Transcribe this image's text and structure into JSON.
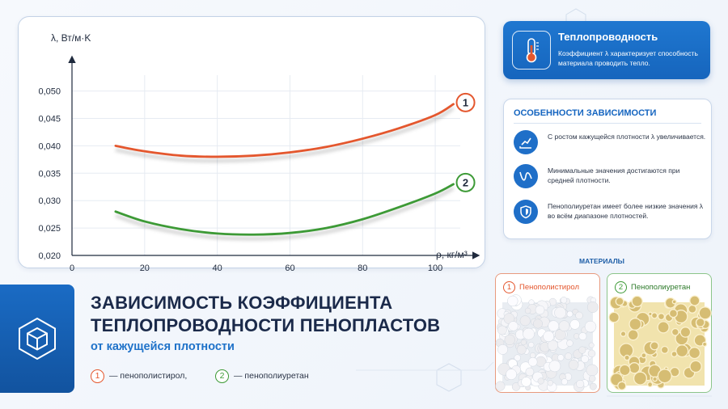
{
  "chart": {
    "y_axis_label": "λ, Вт/м·K",
    "x_axis_label": "ρ, кг/м³"
  },
  "chart_data": {
    "type": "line",
    "x_ticks": [
      0,
      20,
      40,
      60,
      80,
      100
    ],
    "y_ticks": [
      "0,020",
      "0,025",
      "0,030",
      "0,035",
      "0,040",
      "0,045",
      "0,050"
    ],
    "xlim": [
      0,
      110
    ],
    "ylim": [
      0.02,
      0.052
    ],
    "grid": true,
    "series": [
      {
        "marker": "1",
        "color": "#e4572e",
        "x": [
          12,
          20,
          30,
          40,
          50,
          60,
          70,
          80,
          90,
          100,
          105
        ],
        "y": [
          0.04,
          0.039,
          0.0382,
          0.038,
          0.0382,
          0.0388,
          0.0398,
          0.0413,
          0.0432,
          0.0456,
          0.0476
        ]
      },
      {
        "marker": "2",
        "color": "#3d9a36",
        "x": [
          12,
          20,
          30,
          40,
          50,
          60,
          70,
          80,
          90,
          100,
          105
        ],
        "y": [
          0.028,
          0.0262,
          0.0248,
          0.024,
          0.0238,
          0.0241,
          0.025,
          0.0266,
          0.0288,
          0.0313,
          0.033
        ]
      }
    ]
  },
  "info_card": {
    "title": "Теплопроводность",
    "description": "Коэффициент λ характеризует способность материала проводить тепло.",
    "icon": "thermometer-icon"
  },
  "features": {
    "title": "ОСОБЕННОСТИ ЗАВИСИМОСТИ",
    "items": [
      {
        "icon": "trend-up-icon",
        "text": "С ростом кажущейся плотности λ увеличивается."
      },
      {
        "icon": "curve-min-icon",
        "text": "Минимальные значения достигаются при средней плотности."
      },
      {
        "icon": "shield-icon",
        "text": "Пенополиуретан имеет более низкие значения λ во всём диапазоне плотностей."
      }
    ]
  },
  "title": {
    "line1": "ЗАВИСИМОСТЬ КОЭФФИЦИЕНТА",
    "line2": "ТЕПЛОПРОВОДНОСТИ ПЕНОПЛАСТОВ",
    "subtitle": "от кажущейся плотности",
    "icon": "cube-icon"
  },
  "legend": {
    "item1_num": "1",
    "item1_text": "— пенополистирол,",
    "item2_num": "2",
    "item2_text": "— пенополиуретан"
  },
  "materials": {
    "header": "МАТЕРИАЛЫ",
    "item1_num": "1",
    "item1_name": "Пенополистирол",
    "item2_num": "2",
    "item2_name": "Пенополиуретан"
  },
  "colors": {
    "series1": "#e4572e",
    "series2": "#3d9a36",
    "accent": "#1f72c9"
  }
}
